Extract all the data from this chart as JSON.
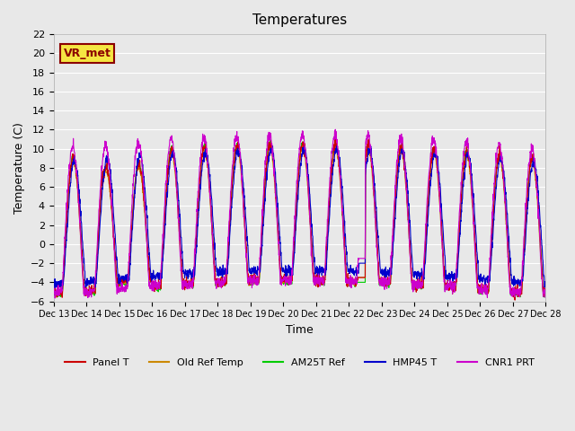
{
  "title": "Temperatures",
  "ylabel": "Temperature (C)",
  "xlabel": "Time",
  "annotation": "VR_met",
  "ylim": [
    -6,
    22
  ],
  "yticks": [
    -6,
    -4,
    -2,
    0,
    2,
    4,
    6,
    8,
    10,
    12,
    14,
    16,
    18,
    20,
    22
  ],
  "xtick_labels": [
    "Dec 13",
    "Dec 14",
    "Dec 15",
    "Dec 16",
    "Dec 17",
    "Dec 18",
    "Dec 19",
    "Dec 20",
    "Dec 21",
    "Dec 22",
    "Dec 23",
    "Dec 24",
    "Dec 25",
    "Dec 26",
    "Dec 27",
    "Dec 28"
  ],
  "n_days": 15,
  "background_color": "#e8e8e8",
  "plot_bg_color": "#e8e8e8",
  "grid_color": "#ffffff",
  "colors": {
    "Panel T": "#cc0000",
    "Old Ref Temp": "#cc8800",
    "AM25T Ref": "#00cc00",
    "HMP45 T": "#0000cc",
    "CNR1 PRT": "#cc00cc"
  },
  "legend_entries": [
    "Panel T",
    "Old Ref Temp",
    "AM25T Ref",
    "HMP45 T",
    "CNR1 PRT"
  ]
}
